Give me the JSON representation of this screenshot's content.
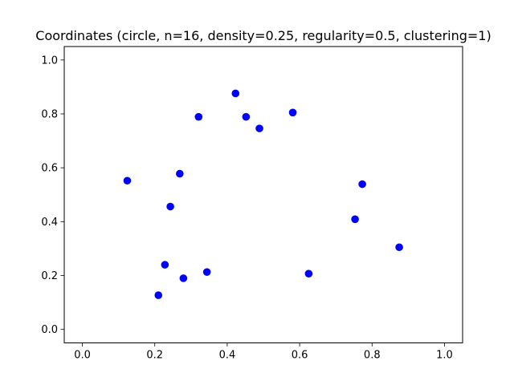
{
  "chart_data": {
    "type": "scatter",
    "title": "Coordinates (circle, n=16, density=0.25, regularity=0.5, clustering=1)",
    "xlabel": "",
    "ylabel": "",
    "xlim": [
      -0.05,
      1.05
    ],
    "ylim": [
      -0.05,
      1.05
    ],
    "xticks": [
      0.0,
      0.2,
      0.4,
      0.6,
      0.8,
      1.0
    ],
    "xtick_labels": [
      "0.0",
      "0.2",
      "0.4",
      "0.6",
      "0.8",
      "1.0"
    ],
    "yticks": [
      0.0,
      0.2,
      0.4,
      0.6,
      0.8,
      1.0
    ],
    "ytick_labels": [
      "0.0",
      "0.2",
      "0.4",
      "0.6",
      "0.8",
      "1.0"
    ],
    "grid": false,
    "legend": "none",
    "marker_color": "#0000ff",
    "points": [
      {
        "x": 0.423,
        "y": 0.876
      },
      {
        "x": 0.321,
        "y": 0.789
      },
      {
        "x": 0.452,
        "y": 0.789
      },
      {
        "x": 0.489,
        "y": 0.746
      },
      {
        "x": 0.581,
        "y": 0.805
      },
      {
        "x": 0.124,
        "y": 0.552
      },
      {
        "x": 0.269,
        "y": 0.578
      },
      {
        "x": 0.243,
        "y": 0.456
      },
      {
        "x": 0.773,
        "y": 0.539
      },
      {
        "x": 0.753,
        "y": 0.409
      },
      {
        "x": 0.875,
        "y": 0.305
      },
      {
        "x": 0.625,
        "y": 0.207
      },
      {
        "x": 0.344,
        "y": 0.213
      },
      {
        "x": 0.228,
        "y": 0.24
      },
      {
        "x": 0.279,
        "y": 0.19
      },
      {
        "x": 0.21,
        "y": 0.127
      }
    ]
  }
}
